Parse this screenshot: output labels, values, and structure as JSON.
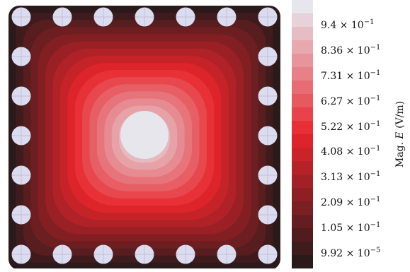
{
  "figure": {
    "colorbar": {
      "quantity_prefix": "Mag.",
      "quantity_symbol": "E",
      "unit": "(V/m)",
      "ticks": [
        {
          "mantissa": "9.4",
          "exponent": "−1",
          "value": 0.94
        },
        {
          "mantissa": "8.36",
          "exponent": "−1",
          "value": 0.836
        },
        {
          "mantissa": "7.31",
          "exponent": "−1",
          "value": 0.731
        },
        {
          "mantissa": "6.27",
          "exponent": "−1",
          "value": 0.627
        },
        {
          "mantissa": "5.22",
          "exponent": "−1",
          "value": 0.522
        },
        {
          "mantissa": "4.08",
          "exponent": "−1",
          "value": 0.408
        },
        {
          "mantissa": "3.13",
          "exponent": "−1",
          "value": 0.313
        },
        {
          "mantissa": "2.09",
          "exponent": "−1",
          "value": 0.209
        },
        {
          "mantissa": "1.05",
          "exponent": "−1",
          "value": 0.105
        },
        {
          "mantissa": "9.92",
          "exponent": "−5",
          "value": 9.92e-05
        }
      ],
      "band_count": 18,
      "color_low": "#2a1a1b",
      "color_mid": "#e8252c",
      "color_high": "#e6e6ec"
    },
    "field_map": {
      "electrodes_per_side": 7,
      "electrode_color": "#dcdcf0",
      "outer_color": "#2a1a1b",
      "center_color": "#e6e6ec"
    }
  }
}
